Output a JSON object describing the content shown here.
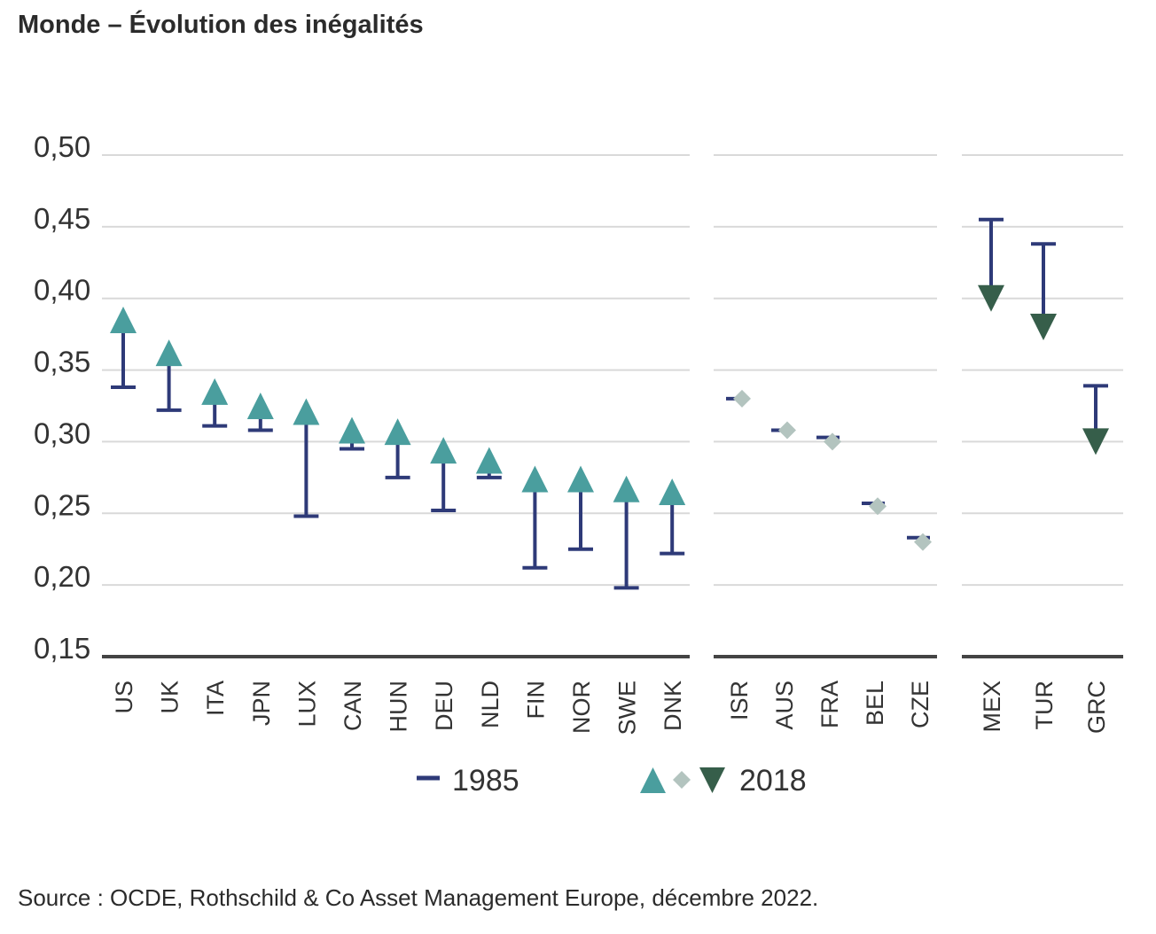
{
  "title": "Monde – Évolution des inégalités",
  "source": "Source : OCDE, Rothschild & Co Asset Management Europe, décembre 2022.",
  "colors": {
    "line_1985": "#2e3a78",
    "increase": "#4a9e9e",
    "stable": "#b3c4bf",
    "decrease": "#365e4a",
    "grid": "#d9d9d9",
    "axis": "#444444"
  },
  "chart_data": {
    "type": "dot-range",
    "ylim": [
      0.15,
      0.5
    ],
    "yticks": [
      "0,50",
      "0,45",
      "0,40",
      "0,35",
      "0,30",
      "0,25",
      "0,20",
      "0,15"
    ],
    "ytick_values": [
      0.5,
      0.45,
      0.4,
      0.35,
      0.3,
      0.25,
      0.2,
      0.15
    ],
    "legend": {
      "label_1985": "1985",
      "label_2018": "2018"
    },
    "groups": [
      {
        "marker": "triangle-up",
        "countries": [
          {
            "code": "US",
            "v1985": 0.338,
            "v2018": 0.385
          },
          {
            "code": "UK",
            "v1985": 0.322,
            "v2018": 0.362
          },
          {
            "code": "ITA",
            "v1985": 0.311,
            "v2018": 0.335
          },
          {
            "code": "JPN",
            "v1985": 0.308,
            "v2018": 0.325
          },
          {
            "code": "LUX",
            "v1985": 0.248,
            "v2018": 0.321
          },
          {
            "code": "CAN",
            "v1985": 0.295,
            "v2018": 0.308
          },
          {
            "code": "HUN",
            "v1985": 0.275,
            "v2018": 0.307
          },
          {
            "code": "DEU",
            "v1985": 0.252,
            "v2018": 0.294
          },
          {
            "code": "NLD",
            "v1985": 0.275,
            "v2018": 0.287
          },
          {
            "code": "FIN",
            "v1985": 0.212,
            "v2018": 0.274
          },
          {
            "code": "NOR",
            "v1985": 0.225,
            "v2018": 0.274
          },
          {
            "code": "SWE",
            "v1985": 0.198,
            "v2018": 0.267
          },
          {
            "code": "DNK",
            "v1985": 0.222,
            "v2018": 0.265
          }
        ]
      },
      {
        "marker": "diamond",
        "countries": [
          {
            "code": "ISR",
            "v1985": 0.33,
            "v2018": 0.33
          },
          {
            "code": "AUS",
            "v1985": 0.308,
            "v2018": 0.308
          },
          {
            "code": "FRA",
            "v1985": 0.303,
            "v2018": 0.3
          },
          {
            "code": "BEL",
            "v1985": 0.257,
            "v2018": 0.255
          },
          {
            "code": "CZE",
            "v1985": 0.233,
            "v2018": 0.23
          }
        ]
      },
      {
        "marker": "triangle-down",
        "countries": [
          {
            "code": "MEX",
            "v1985": 0.455,
            "v2018": 0.4
          },
          {
            "code": "TUR",
            "v1985": 0.438,
            "v2018": 0.38
          },
          {
            "code": "GRC",
            "v1985": 0.339,
            "v2018": 0.3
          }
        ]
      }
    ]
  }
}
